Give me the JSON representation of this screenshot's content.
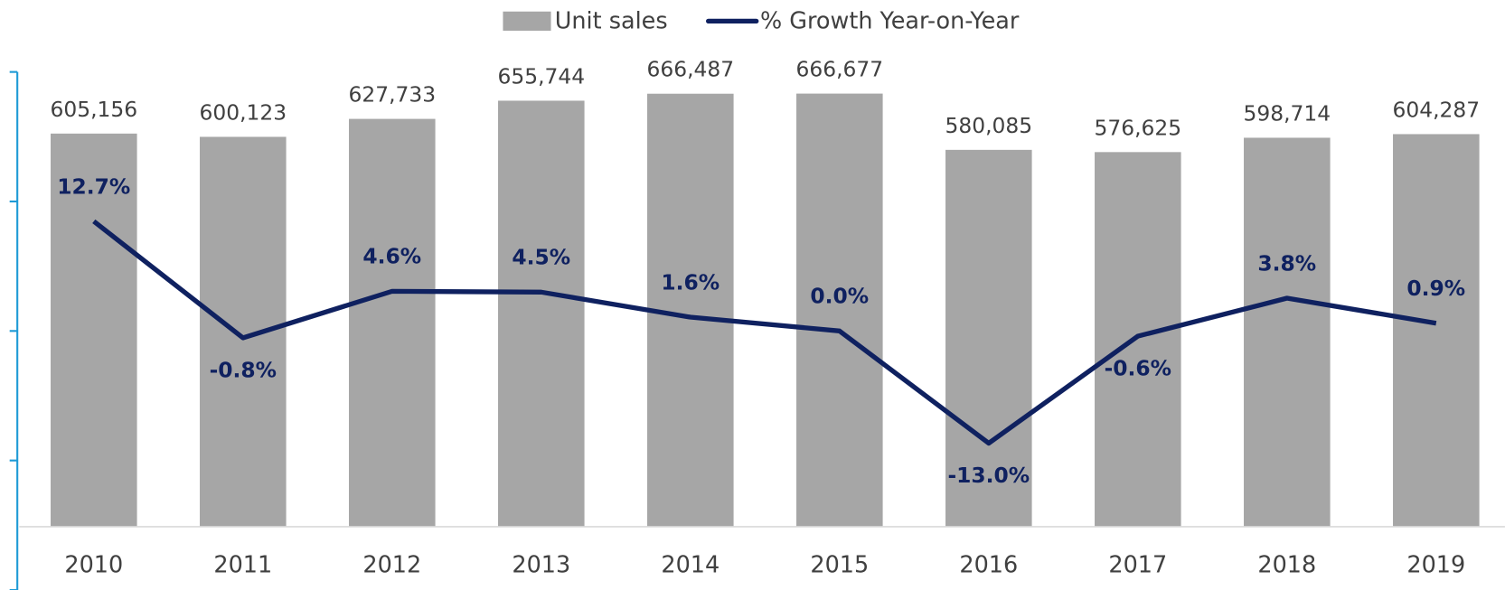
{
  "chart_data": {
    "type": "bar_line",
    "categories": [
      "2010",
      "2011",
      "2012",
      "2013",
      "2014",
      "2015",
      "2016",
      "2017",
      "2018",
      "2019"
    ],
    "series": [
      {
        "name": "Unit sales",
        "color": "#a6a6a6",
        "values": [
          605156,
          600123,
          627733,
          655744,
          666487,
          666677,
          580085,
          576625,
          598714,
          604287
        ],
        "value_labels": [
          "605,156",
          "600,123",
          "627,733",
          "655,744",
          "666,487",
          "666,677",
          "580,085",
          "576,625",
          "598,714",
          "604,287"
        ]
      },
      {
        "name": "% Growth Year-on-Year",
        "color": "#0f2160",
        "axis": "y2",
        "values": [
          12.7,
          -0.8,
          4.6,
          4.5,
          1.6,
          0.0,
          -13.0,
          -0.6,
          3.8,
          0.9
        ],
        "value_labels": [
          "12.7%",
          "-0.8%",
          "4.6%",
          "4.5%",
          "1.6%",
          "0.0%",
          "-13.0%",
          "-0.6%",
          "3.8%",
          "0.9%"
        ]
      }
    ],
    "ylim": [
      0,
      700000
    ],
    "y2lim": [
      -30,
      30
    ],
    "y2ticks": [
      -30,
      -15,
      0,
      15,
      30
    ],
    "axis_color": "#1f9bd6",
    "legend": "top"
  }
}
